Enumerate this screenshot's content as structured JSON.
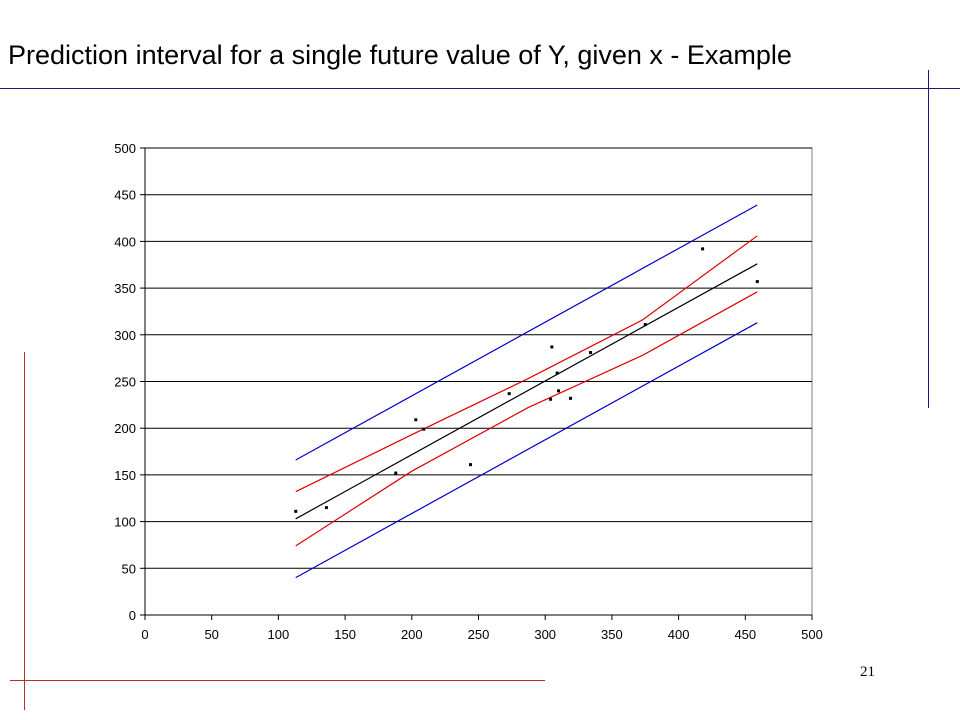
{
  "title": "Prediction interval for a single future value of Y, given x - Example",
  "page_number": "21",
  "colors": {
    "prediction_band": "#0000cc",
    "confidence_band": "#e00000",
    "regression_line": "#000000",
    "points": "#000000",
    "decor_top": "#1a1a7a",
    "decor_bottom": "#b03030"
  },
  "chart_data": {
    "type": "scatter",
    "title": "",
    "xlabel": "",
    "ylabel": "",
    "xlim": [
      0,
      500
    ],
    "ylim": [
      0,
      500
    ],
    "xticks": [
      0,
      50,
      100,
      150,
      200,
      250,
      300,
      350,
      400,
      450,
      500
    ],
    "yticks": [
      0,
      50,
      100,
      150,
      200,
      250,
      300,
      350,
      400,
      450,
      500
    ],
    "grid": "horizontal",
    "legend": "none",
    "points": [
      {
        "x": 113,
        "y": 111
      },
      {
        "x": 136,
        "y": 115
      },
      {
        "x": 188,
        "y": 152
      },
      {
        "x": 203,
        "y": 209
      },
      {
        "x": 209,
        "y": 199
      },
      {
        "x": 244,
        "y": 161
      },
      {
        "x": 273,
        "y": 237
      },
      {
        "x": 304,
        "y": 231
      },
      {
        "x": 305,
        "y": 287
      },
      {
        "x": 309,
        "y": 259
      },
      {
        "x": 310,
        "y": 240
      },
      {
        "x": 319,
        "y": 232
      },
      {
        "x": 334,
        "y": 281
      },
      {
        "x": 375,
        "y": 311
      },
      {
        "x": 418,
        "y": 392
      },
      {
        "x": 459,
        "y": 357
      }
    ],
    "series": [
      {
        "style": "line",
        "color": "#000000",
        "x": [
          113,
          459
        ],
        "y": [
          103,
          376
        ]
      },
      {
        "style": "line",
        "color": "#e00000",
        "x": [
          113,
          200,
          287,
          373,
          459
        ],
        "y": [
          132,
          193,
          253,
          316,
          406
        ]
      },
      {
        "style": "line",
        "color": "#e00000",
        "x": [
          113,
          200,
          287,
          373,
          459
        ],
        "y": [
          74,
          154,
          222,
          278,
          346
        ]
      },
      {
        "style": "line",
        "color": "#0000cc",
        "x": [
          113,
          459
        ],
        "y": [
          166,
          439
        ]
      },
      {
        "style": "line",
        "color": "#0000cc",
        "x": [
          113,
          459
        ],
        "y": [
          40,
          313
        ]
      }
    ]
  }
}
